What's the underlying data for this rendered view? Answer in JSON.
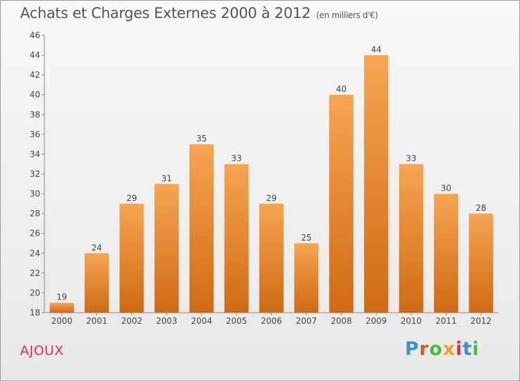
{
  "header": {
    "title": "Achats et Charges Externes 2000 à 2012",
    "subtitle": "(en milliers d'€)"
  },
  "footer": {
    "place": "AJOUX",
    "logo": "Proxiti",
    "logo_colors": [
      "#3a8fd8",
      "#e8501c",
      "#4db84a",
      "#f0a11e",
      "#d8334a",
      "#3a8fd8",
      "#4db84a"
    ]
  },
  "chart_data": {
    "type": "bar",
    "categories": [
      "2000",
      "2001",
      "2002",
      "2003",
      "2004",
      "2005",
      "2006",
      "2007",
      "2008",
      "2009",
      "2010",
      "2011",
      "2012"
    ],
    "values": [
      19,
      24,
      29,
      31,
      35,
      33,
      29,
      25,
      40,
      44,
      33,
      30,
      28
    ],
    "ylim": [
      18,
      46
    ],
    "yticks": [
      18,
      20,
      22,
      24,
      26,
      28,
      30,
      32,
      34,
      36,
      38,
      40,
      42,
      44,
      46
    ],
    "bar_color_top": "#f6a552",
    "bar_color_bottom": "#d06a14",
    "grid": false
  }
}
